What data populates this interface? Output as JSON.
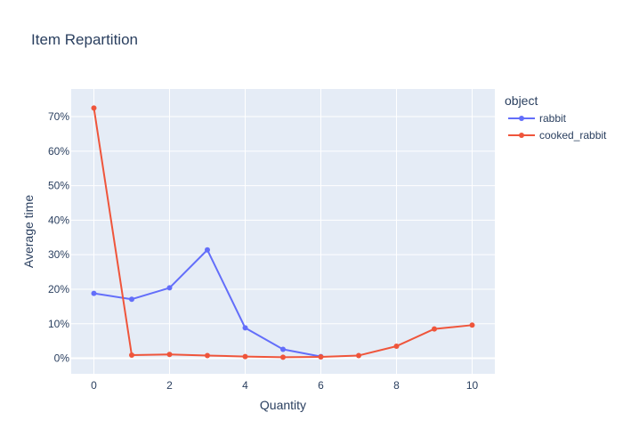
{
  "chart_data": {
    "type": "line",
    "title": "Item Repartition",
    "xlabel": "Quantity",
    "ylabel": "Average time",
    "xlim": [
      -0.6,
      10.6
    ],
    "ylim": [
      -4.5,
      78
    ],
    "x_ticks": [
      0,
      2,
      4,
      6,
      8,
      10
    ],
    "y_ticks": [
      0,
      10,
      20,
      30,
      40,
      50,
      60,
      70
    ],
    "y_tick_suffix": "%",
    "grid": true,
    "legend": {
      "title": "object",
      "position": "right"
    },
    "background": "#e5ecf6",
    "series": [
      {
        "name": "rabbit",
        "color": "#636efa",
        "x": [
          0,
          1,
          2,
          3,
          4,
          5,
          6
        ],
        "y": [
          18.8,
          17.1,
          20.4,
          31.4,
          8.8,
          2.6,
          0.5
        ]
      },
      {
        "name": "cooked_rabbit",
        "color": "#ef553b",
        "x": [
          0,
          1,
          2,
          3,
          4,
          5,
          6,
          7,
          8,
          9,
          10
        ],
        "y": [
          72.5,
          0.9,
          1.1,
          0.8,
          0.5,
          0.3,
          0.4,
          0.8,
          3.5,
          8.5,
          9.6
        ]
      }
    ]
  }
}
